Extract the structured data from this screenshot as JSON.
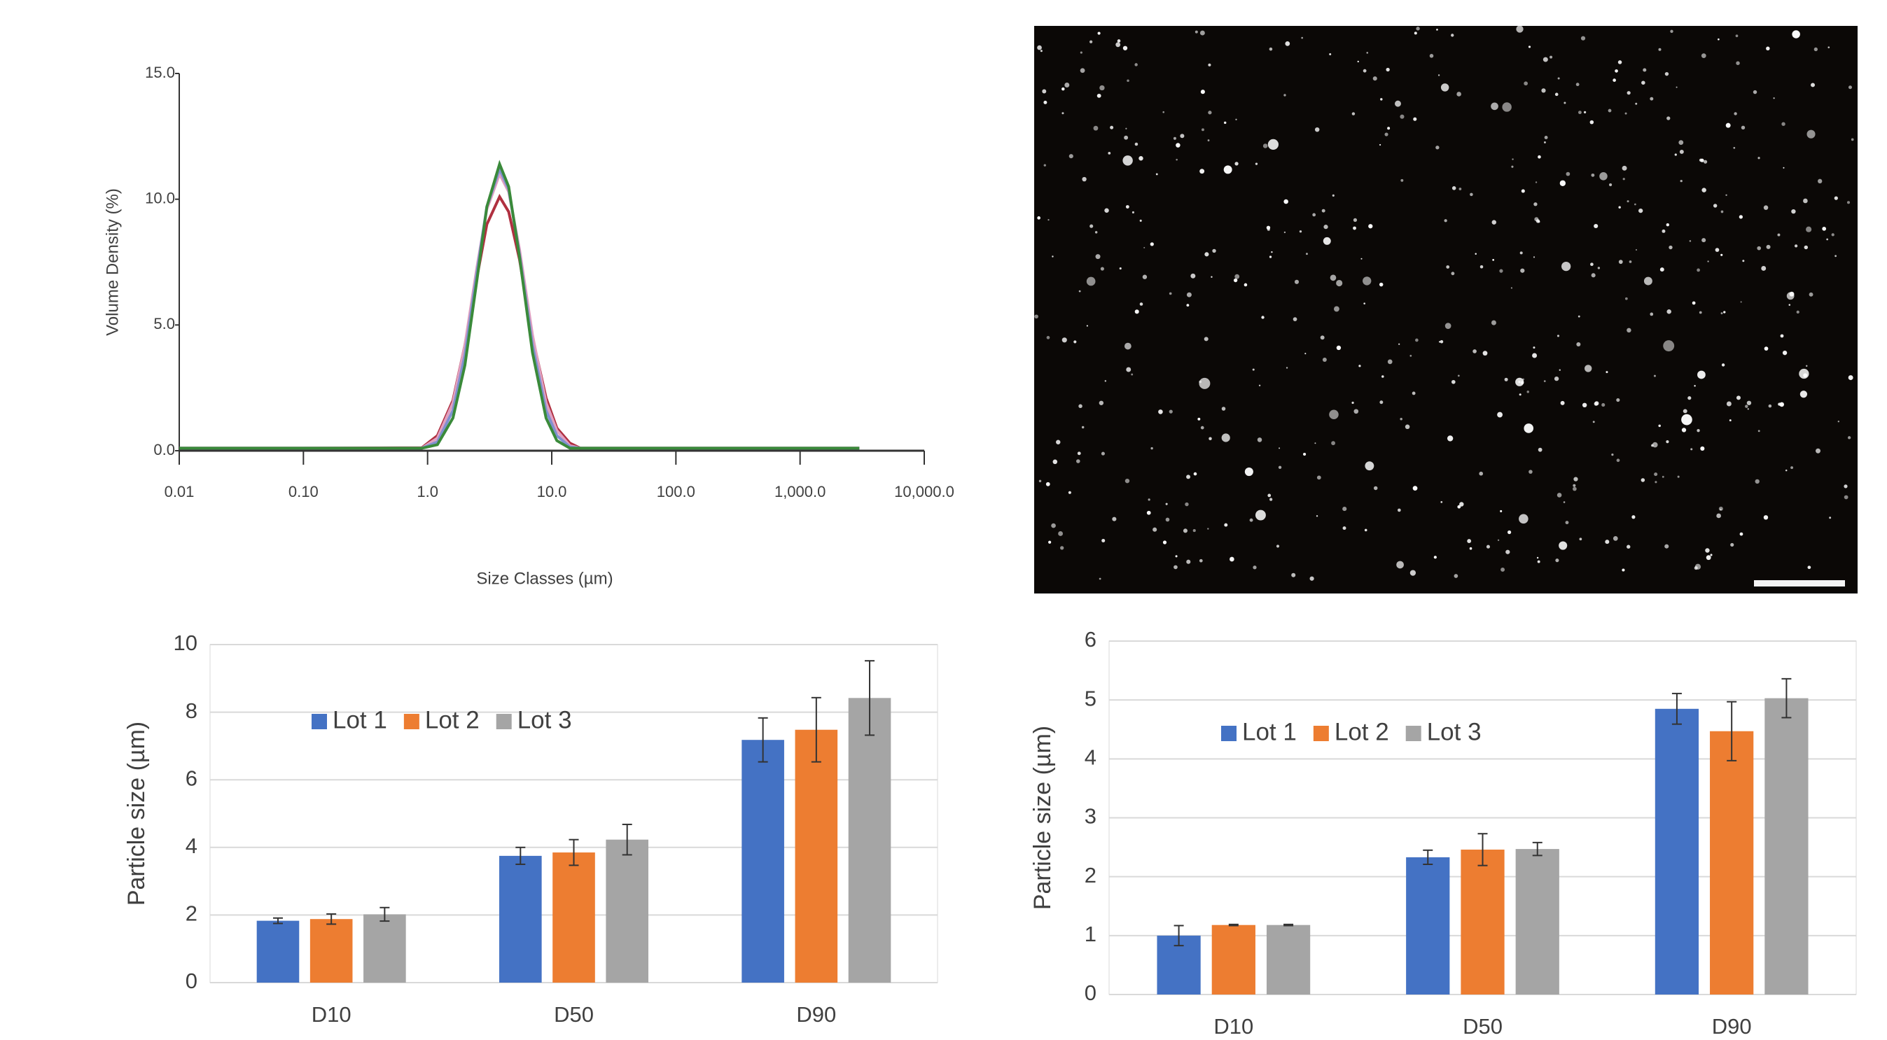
{
  "chart_data": [
    {
      "type": "line",
      "xlabel": "Size Classes (µm)",
      "ylabel": "Volume Density (%)",
      "log_x": true,
      "x": [
        0.01,
        0.1,
        0.9,
        1.2,
        1.6,
        2,
        2.5,
        3,
        3.8,
        4.5,
        5.5,
        7,
        9,
        11,
        14,
        17,
        100,
        1000,
        3000
      ],
      "series": [
        {
          "color": "#b03040",
          "values": [
            0.1,
            0.1,
            0.12,
            0.6,
            2.0,
            4.2,
            6.9,
            9.0,
            10.1,
            9.5,
            7.6,
            4.5,
            2.1,
            0.9,
            0.3,
            0.1,
            0.1,
            0.1,
            0.1
          ]
        },
        {
          "color": "#e0a0c0",
          "values": [
            0.1,
            0.1,
            0.1,
            0.5,
            1.9,
            4.2,
            7.3,
            9.6,
            11.0,
            10.3,
            8.0,
            4.6,
            1.9,
            0.8,
            0.2,
            0.1,
            0.1,
            0.1,
            0.1
          ]
        },
        {
          "color": "#8090d0",
          "values": [
            0.1,
            0.1,
            0.1,
            0.35,
            1.6,
            3.8,
            7.1,
            9.7,
            11.2,
            10.4,
            7.8,
            4.2,
            1.6,
            0.6,
            0.15,
            0.1,
            0.1,
            0.1,
            0.1
          ]
        },
        {
          "color": "#3a8a3a",
          "values": [
            0.1,
            0.1,
            0.1,
            0.24,
            1.3,
            3.4,
            6.8,
            9.7,
            11.4,
            10.5,
            7.7,
            3.9,
            1.3,
            0.4,
            0.1,
            0.1,
            0.1,
            0.1,
            0.1
          ]
        }
      ],
      "xlim": [
        0.01,
        10000
      ],
      "xticks": [
        {
          "value": 0.01,
          "label": "0.01"
        },
        {
          "value": 0.1,
          "label": "0.10"
        },
        {
          "value": 1,
          "label": "1.0"
        },
        {
          "value": 10,
          "label": "10.0"
        },
        {
          "value": 100,
          "label": "100.0"
        },
        {
          "value": 1000,
          "label": "1,000.0"
        },
        {
          "value": 10000,
          "label": "10,000.0"
        }
      ],
      "ylim": [
        0,
        15
      ],
      "yticks": [
        {
          "value": 0,
          "label": "0.0"
        },
        {
          "value": 5,
          "label": "5.0"
        },
        {
          "value": 10,
          "label": "10.0"
        },
        {
          "value": 15,
          "label": "15.0"
        }
      ],
      "grid": false
    },
    {
      "type": "bar",
      "ylabel": "Particle size (µm)",
      "categories": [
        "D10",
        "D50",
        "D90"
      ],
      "series": [
        {
          "name": "Lot 1",
          "color": "#4472c4",
          "values": [
            1.83,
            3.75,
            7.18
          ],
          "errors": [
            0.08,
            0.25,
            0.65
          ]
        },
        {
          "name": "Lot 2",
          "color": "#ed7d31",
          "values": [
            1.88,
            3.85,
            7.48
          ],
          "errors": [
            0.15,
            0.38,
            0.95
          ]
        },
        {
          "name": "Lot 3",
          "color": "#a5a5a5",
          "values": [
            2.02,
            4.23,
            8.42
          ],
          "errors": [
            0.2,
            0.45,
            1.1
          ]
        }
      ],
      "ylim": [
        0,
        10
      ],
      "yticks": [
        0,
        2,
        4,
        6,
        8,
        10
      ],
      "grid": true
    },
    {
      "type": "bar",
      "ylabel": "Particle size (µm)",
      "categories": [
        "D10",
        "D50",
        "D90"
      ],
      "series": [
        {
          "name": "Lot 1",
          "color": "#4472c4",
          "values": [
            1.0,
            2.33,
            4.85
          ],
          "errors": [
            0.17,
            0.12,
            0.26
          ]
        },
        {
          "name": "Lot 2",
          "color": "#ed7d31",
          "values": [
            1.18,
            2.46,
            4.47
          ],
          "errors": [
            0.01,
            0.27,
            0.5
          ]
        },
        {
          "name": "Lot 3",
          "color": "#a5a5a5",
          "values": [
            1.18,
            2.47,
            5.03
          ],
          "errors": [
            0.01,
            0.11,
            0.33
          ]
        }
      ],
      "ylim": [
        0,
        6
      ],
      "yticks": [
        0,
        1,
        2,
        3,
        4,
        5,
        6
      ],
      "grid": true
    }
  ]
}
